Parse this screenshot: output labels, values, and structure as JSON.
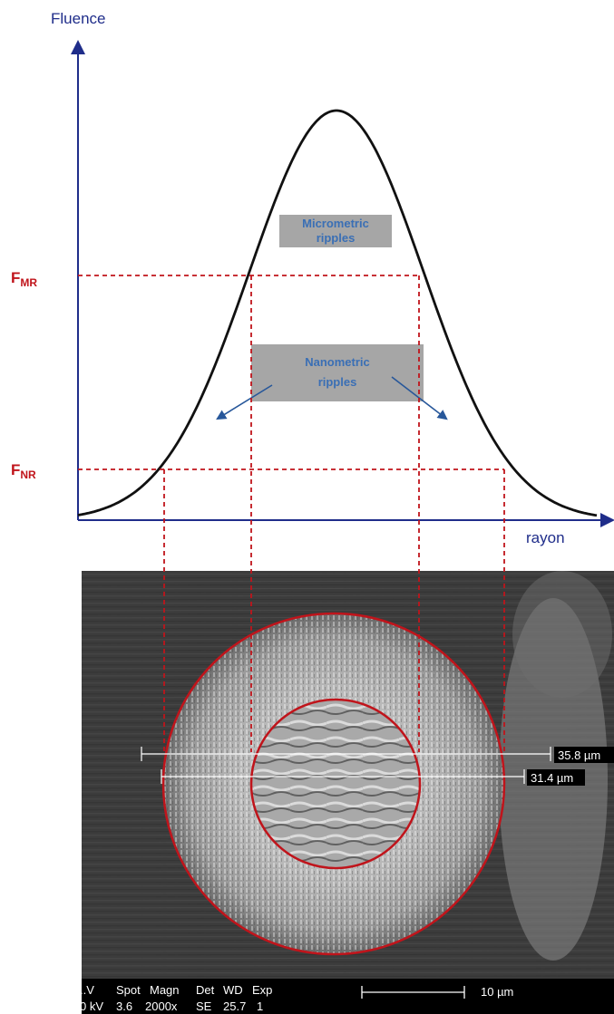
{
  "graph": {
    "y_axis_label": "Fluence",
    "x_axis_label": "rayon",
    "threshold_high": {
      "main": "F",
      "sub": "MR"
    },
    "threshold_low": {
      "main": "F",
      "sub": "NR"
    },
    "zone_micrometric": {
      "line1": "Micrometric",
      "line2": "ripples"
    },
    "zone_nanometric": {
      "line1": "Nanometric",
      "line2": "ripples"
    }
  },
  "sem_image": {
    "measurements": [
      {
        "label": "35.8 µm"
      },
      {
        "label": "31.4 µm"
      }
    ],
    "info_bar": {
      "headers": [
        "kV",
        "Spot",
        "Magn",
        "Det",
        "WD",
        "Exp"
      ],
      "header_first": "..V",
      "values": [
        "0 kV",
        "3.6",
        "2000x",
        "SE",
        "25.7",
        "1"
      ],
      "scale_bar_label": "10 µm"
    }
  },
  "colors": {
    "axis": "#1f2d8a",
    "axis_label": "#1f2d8a",
    "curve": "#111111",
    "threshold_lines": "#c0141b",
    "threshold_labels": "#c0141b",
    "zone_box": "#a6a6a6",
    "zone_text": "#3a6fb5",
    "arrows": "#27579a",
    "rings": "#c0141b",
    "sem_bg": "#3c3c3c"
  }
}
